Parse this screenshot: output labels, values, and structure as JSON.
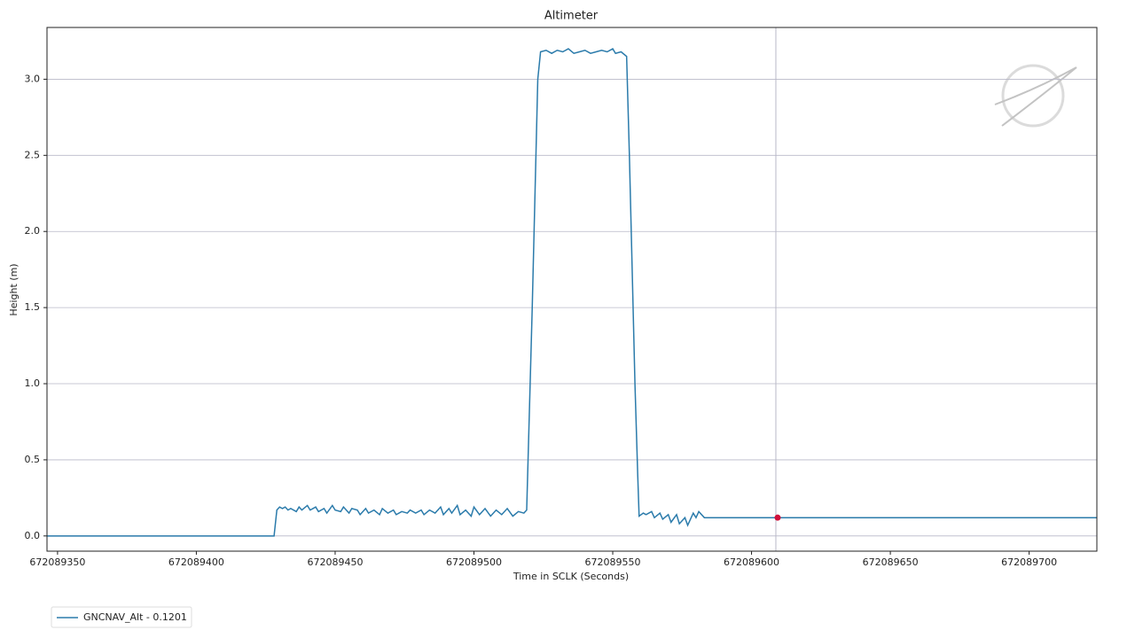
{
  "chart_data": {
    "type": "line",
    "title": "Altimeter",
    "x_label": "Time in SCLK (Seconds)",
    "y_label": "Height (m)",
    "xlim": [
      672089346.2,
      672089724.4
    ],
    "ylim": [
      -0.1,
      3.34
    ],
    "xticks": [
      672089350,
      672089400,
      672089450,
      672089500,
      672089550,
      672089600,
      672089650,
      672089700
    ],
    "yticks": [
      {
        "value": 0,
        "label": "0.0"
      },
      0.5,
      {
        "value": 1,
        "label": "1.0"
      },
      1.5,
      {
        "value": 2,
        "label": "2.0"
      },
      2.5,
      {
        "value": 3,
        "label": "3.0"
      }
    ],
    "grid": true,
    "legend": "lower left",
    "marker": {
      "x": 672089609.4,
      "y": 0.1201,
      "color": "#d0103a"
    },
    "series": [
      {
        "name": "GNCNAV_Alt - 0.1201",
        "color": "#2b7bab",
        "x": [
          672089346,
          672089428,
          672089429,
          672089430,
          672089431,
          672089432,
          672089433,
          672089434,
          672089436,
          672089437,
          672089438,
          672089440,
          672089441,
          672089443,
          672089444,
          672089446,
          672089447,
          672089449,
          672089450,
          672089452,
          672089453,
          672089455,
          672089456,
          672089458,
          672089459,
          672089461,
          672089462,
          672089464,
          672089466,
          672089467,
          672089469,
          672089471,
          672089472,
          672089474,
          672089476,
          672089477,
          672089479,
          672089481,
          672089482,
          672089484,
          672089486,
          672089488,
          672089489,
          672089491,
          672089492,
          672089494,
          672089495,
          672089497,
          672089499,
          672089500,
          672089502,
          672089504,
          672089506,
          672089508,
          672089510,
          672089512,
          672089514,
          672089516,
          672089518,
          672089519,
          672089521,
          672089523,
          672089524,
          672089526,
          672089528,
          672089530,
          672089532,
          672089534,
          672089536,
          672089538,
          672089540,
          672089542,
          672089544,
          672089546,
          672089548,
          672089550,
          672089551,
          672089553,
          672089555,
          672089556,
          672089558,
          672089559,
          672089559.5,
          672089561,
          672089562,
          672089564,
          672089565,
          672089567,
          672089568,
          672089570,
          672089571,
          672089573,
          672089574,
          672089576,
          672089577,
          672089579,
          672089580,
          672089581,
          672089583,
          672089724.4
        ],
        "values": [
          0,
          0,
          0.17,
          0.19,
          0.18,
          0.19,
          0.17,
          0.18,
          0.16,
          0.19,
          0.17,
          0.2,
          0.17,
          0.19,
          0.16,
          0.18,
          0.15,
          0.2,
          0.17,
          0.16,
          0.19,
          0.15,
          0.18,
          0.17,
          0.14,
          0.18,
          0.15,
          0.17,
          0.14,
          0.18,
          0.15,
          0.17,
          0.14,
          0.16,
          0.15,
          0.17,
          0.15,
          0.17,
          0.14,
          0.17,
          0.15,
          0.19,
          0.14,
          0.18,
          0.15,
          0.2,
          0.14,
          0.17,
          0.13,
          0.19,
          0.14,
          0.18,
          0.13,
          0.17,
          0.14,
          0.18,
          0.13,
          0.16,
          0.15,
          0.17,
          1.5,
          3.0,
          3.18,
          3.19,
          3.17,
          3.19,
          3.18,
          3.2,
          3.17,
          3.18,
          3.19,
          3.17,
          3.18,
          3.19,
          3.18,
          3.2,
          3.17,
          3.18,
          3.15,
          2.5,
          1.0,
          0.4,
          0.13,
          0.15,
          0.14,
          0.16,
          0.12,
          0.15,
          0.11,
          0.14,
          0.09,
          0.14,
          0.08,
          0.12,
          0.07,
          0.15,
          0.12,
          0.16,
          0.1201,
          0.1201
        ]
      }
    ]
  }
}
